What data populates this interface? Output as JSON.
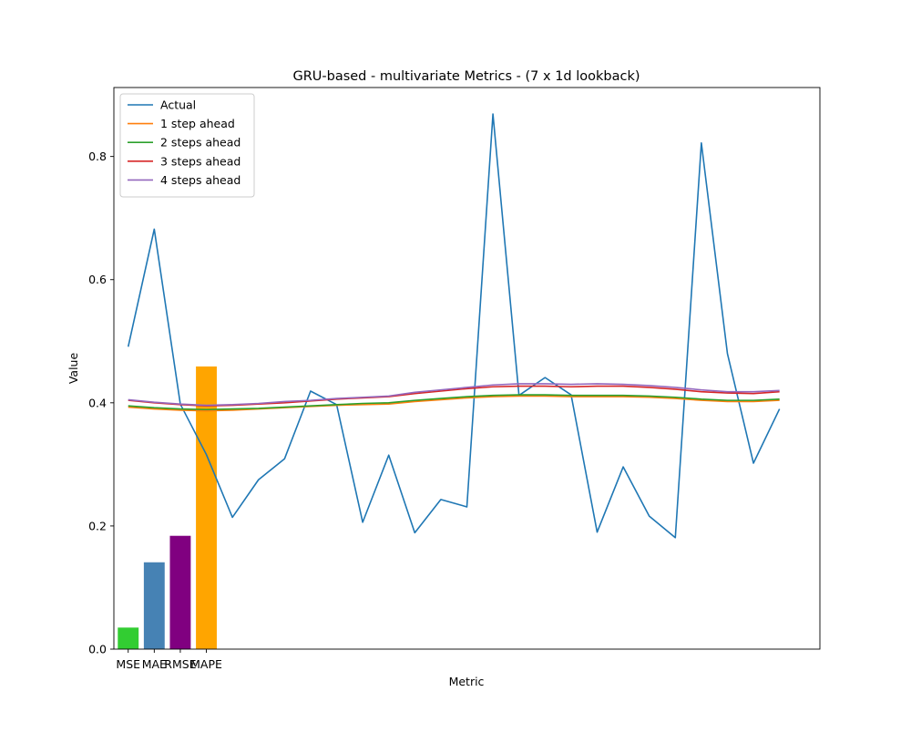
{
  "chart_data": {
    "type": "line",
    "title": "GRU-based - multivariate Metrics - (7 x 1d lookback)",
    "xlabel": "Metric",
    "ylabel": "Value",
    "ylim": [
      0,
      0.912
    ],
    "xlim": [
      -0.55,
      26.55
    ],
    "yticks": [
      0.0,
      0.2,
      0.4,
      0.6,
      0.8
    ],
    "ytick_labels": [
      "0.0",
      "0.2",
      "0.4",
      "0.6",
      "0.8"
    ],
    "grid": false,
    "legend_position": "top-left",
    "bars": {
      "categories": [
        "MSE",
        "MAE",
        "RMSE",
        "MAPE"
      ],
      "values": [
        0.035,
        0.141,
        0.184,
        0.459
      ],
      "colors": [
        "#32cd32",
        "#4682b4",
        "#800080",
        "#ffa500"
      ]
    },
    "series": [
      {
        "name": "Actual",
        "color": "#1f77b4",
        "values": [
          0.491,
          0.682,
          0.398,
          0.316,
          0.214,
          0.275,
          0.309,
          0.419,
          0.397,
          0.206,
          0.315,
          0.189,
          0.243,
          0.231,
          0.869,
          0.412,
          0.441,
          0.413,
          0.19,
          0.296,
          0.216,
          0.181,
          0.822,
          0.48,
          0.302,
          0.39
        ]
      },
      {
        "name": "1 step ahead",
        "color": "#ff7f0e",
        "values": [
          0.393,
          0.39,
          0.388,
          0.387,
          0.388,
          0.39,
          0.392,
          0.394,
          0.396,
          0.397,
          0.398,
          0.402,
          0.405,
          0.408,
          0.41,
          0.411,
          0.411,
          0.41,
          0.41,
          0.41,
          0.409,
          0.407,
          0.404,
          0.402,
          0.402,
          0.404
        ]
      },
      {
        "name": "2 steps ahead",
        "color": "#2ca02c",
        "values": [
          0.395,
          0.392,
          0.39,
          0.389,
          0.39,
          0.391,
          0.393,
          0.395,
          0.397,
          0.399,
          0.4,
          0.404,
          0.407,
          0.41,
          0.412,
          0.413,
          0.413,
          0.412,
          0.412,
          0.412,
          0.411,
          0.409,
          0.406,
          0.404,
          0.404,
          0.406
        ]
      },
      {
        "name": "3 steps ahead",
        "color": "#d62728",
        "values": [
          0.404,
          0.4,
          0.397,
          0.395,
          0.396,
          0.398,
          0.4,
          0.403,
          0.406,
          0.408,
          0.41,
          0.415,
          0.419,
          0.423,
          0.426,
          0.427,
          0.427,
          0.426,
          0.427,
          0.427,
          0.425,
          0.422,
          0.418,
          0.416,
          0.415,
          0.418
        ]
      },
      {
        "name": "4 steps ahead",
        "color": "#9467bd",
        "values": [
          0.405,
          0.401,
          0.398,
          0.396,
          0.397,
          0.399,
          0.402,
          0.404,
          0.407,
          0.409,
          0.411,
          0.417,
          0.421,
          0.425,
          0.429,
          0.431,
          0.431,
          0.43,
          0.431,
          0.43,
          0.428,
          0.425,
          0.421,
          0.418,
          0.418,
          0.42
        ]
      }
    ]
  }
}
